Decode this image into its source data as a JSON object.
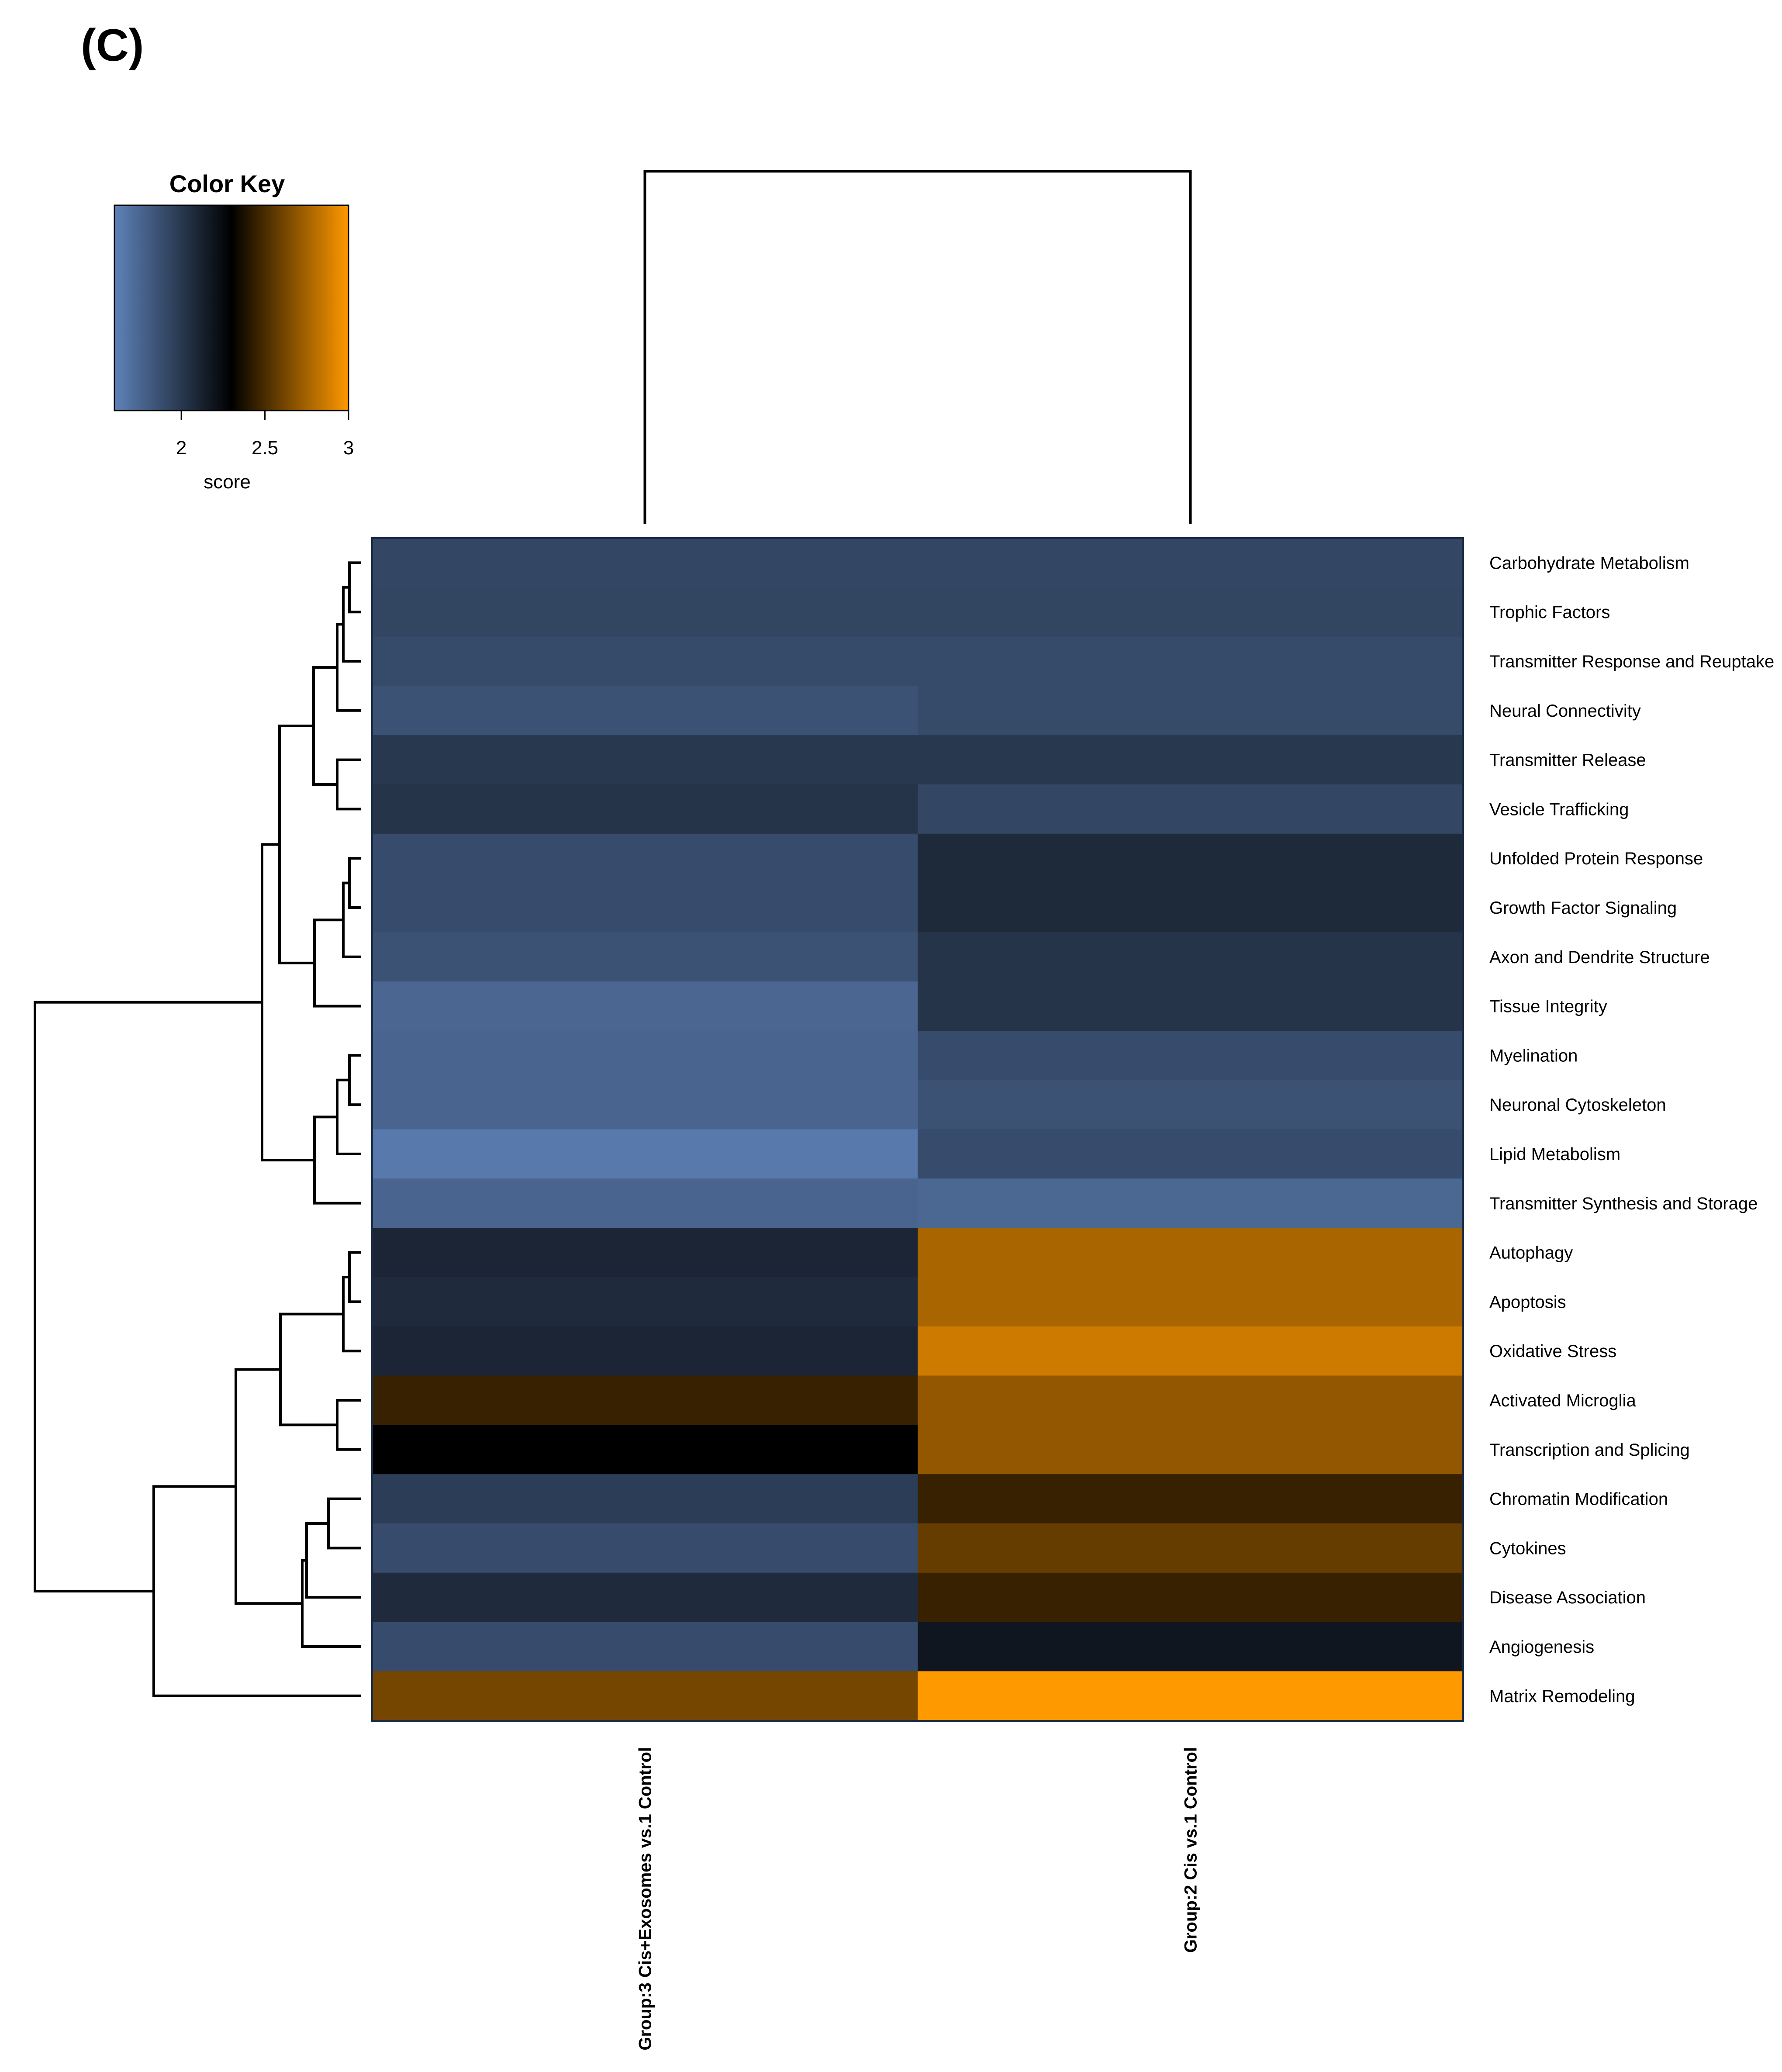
{
  "panel_label": "(C)",
  "color_key": {
    "title": "Color Key",
    "xlabel": "score",
    "ticks": [
      "2",
      "2.5",
      "3"
    ],
    "tick_values": [
      2,
      2.5,
      3
    ],
    "range": [
      1.6,
      3.0
    ],
    "gradient_colors": [
      "#5e82b8",
      "#000000",
      "#ff9900"
    ]
  },
  "chart_data": {
    "type": "heatmap",
    "columns": [
      "Group:3 Cis+Exosomes vs.1 Control",
      "Group:2 Cis vs.1 Control"
    ],
    "rows": [
      "Carbohydrate Metabolism",
      "Trophic Factors",
      "Transmitter Response and Reuptake",
      "Neural Connectivity",
      "Transmitter Release",
      "Vesicle Trafficking",
      "Unfolded Protein Response",
      "Growth Factor Signaling",
      "Axon and Dendrite Structure",
      "Tissue Integrity",
      "Myelination",
      "Neuronal Cytoskeleton",
      "Lipid Metabolism",
      "Transmitter Synthesis and Storage",
      "Autophagy",
      "Apoptosis",
      "Oxidative Stress",
      "Activated Microglia",
      "Transcription and Splicing",
      "Chromatin Modification",
      "Cytokines",
      "Disease Association",
      "Angiogenesis",
      "Matrix Remodeling"
    ],
    "values": [
      [
        1.92,
        1.92
      ],
      [
        1.93,
        1.93
      ],
      [
        1.9,
        1.9
      ],
      [
        1.86,
        1.9
      ],
      [
        2.0,
        2.0
      ],
      [
        2.02,
        1.92
      ],
      [
        1.89,
        2.08
      ],
      [
        1.89,
        2.08
      ],
      [
        1.86,
        2.02
      ],
      [
        1.75,
        2.02
      ],
      [
        1.76,
        1.89
      ],
      [
        1.76,
        1.86
      ],
      [
        1.65,
        1.89
      ],
      [
        1.76,
        1.74
      ],
      [
        2.1,
        2.76
      ],
      [
        2.07,
        2.76
      ],
      [
        2.1,
        2.86
      ],
      [
        2.45,
        2.7
      ],
      [
        2.3,
        2.7
      ],
      [
        1.97,
        2.45
      ],
      [
        1.89,
        2.58
      ],
      [
        2.07,
        2.45
      ],
      [
        1.89,
        2.18
      ],
      [
        2.62,
        3.0
      ]
    ],
    "colorscale": [
      "#5e82b8",
      "#000000",
      "#ff9900"
    ],
    "zlim": [
      1.6,
      3.0
    ],
    "zlabel": "score",
    "col_dendrogram": true,
    "row_dendrogram": true,
    "legend_position": "top-left"
  }
}
